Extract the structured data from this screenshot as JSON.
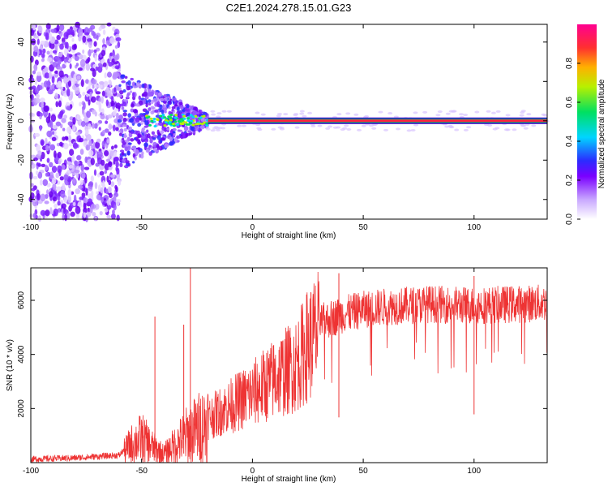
{
  "title": "C2E1.2024.278.15.01.G23",
  "chart_data": [
    {
      "type": "heatmap",
      "xlabel": "Height of straight line (km)",
      "ylabel": "Frequency (Hz)",
      "xlim": [
        -100,
        133
      ],
      "ylim": [
        -50,
        49
      ],
      "xticks": [
        -100,
        -50,
        0,
        50,
        100
      ],
      "yticks": [
        -40,
        -20,
        0,
        20,
        40
      ],
      "grid": false,
      "colorbar": {
        "label": "Normalized spectral amplitude",
        "range": [
          0,
          1
        ],
        "ticks": [
          0.0,
          0.2,
          0.4,
          0.6,
          0.8
        ],
        "tick_labels": [
          "0.0",
          "0.2",
          "0.4",
          "0.6",
          "0.8"
        ],
        "colormap": "white-violet-blue-cyan-green-yellow-red-magenta"
      },
      "description_of_field": {
        "scatter_region_x": [
          -100,
          -60
        ],
        "scatter_region_y": [
          -50,
          49
        ],
        "transition_region_x": [
          -60,
          -20
        ],
        "line_region_x": [
          -20,
          133
        ],
        "line_frequency": 0
      }
    },
    {
      "type": "line",
      "xlabel": "Height of straight line (km)",
      "ylabel": "SNR (10 * v/v)",
      "xlim": [
        -100,
        133
      ],
      "ylim": [
        0,
        7200
      ],
      "xticks": [
        -100,
        -50,
        0,
        50,
        100
      ],
      "yticks": [
        2000,
        4000,
        6000
      ],
      "grid": false,
      "color": "#ee3333",
      "trend": {
        "x": [
          -100,
          -80,
          -60,
          -55,
          -50,
          -45,
          -40,
          -30,
          -20,
          -10,
          0,
          10,
          20,
          25,
          30,
          40,
          50,
          60,
          80,
          100,
          120,
          133
        ],
        "y": [
          150,
          200,
          300,
          800,
          1100,
          700,
          400,
          1200,
          1800,
          2300,
          2800,
          3400,
          4000,
          4800,
          5300,
          5600,
          5800,
          5900,
          6000,
          5950,
          6000,
          6050
        ]
      },
      "peaks": [
        {
          "x": -28,
          "y": 7200
        },
        {
          "x": -44,
          "y": 5400
        },
        {
          "x": -31,
          "y": 5100
        },
        {
          "x": 39,
          "y": 7000
        },
        {
          "x": 100,
          "y": 6900
        }
      ]
    }
  ]
}
